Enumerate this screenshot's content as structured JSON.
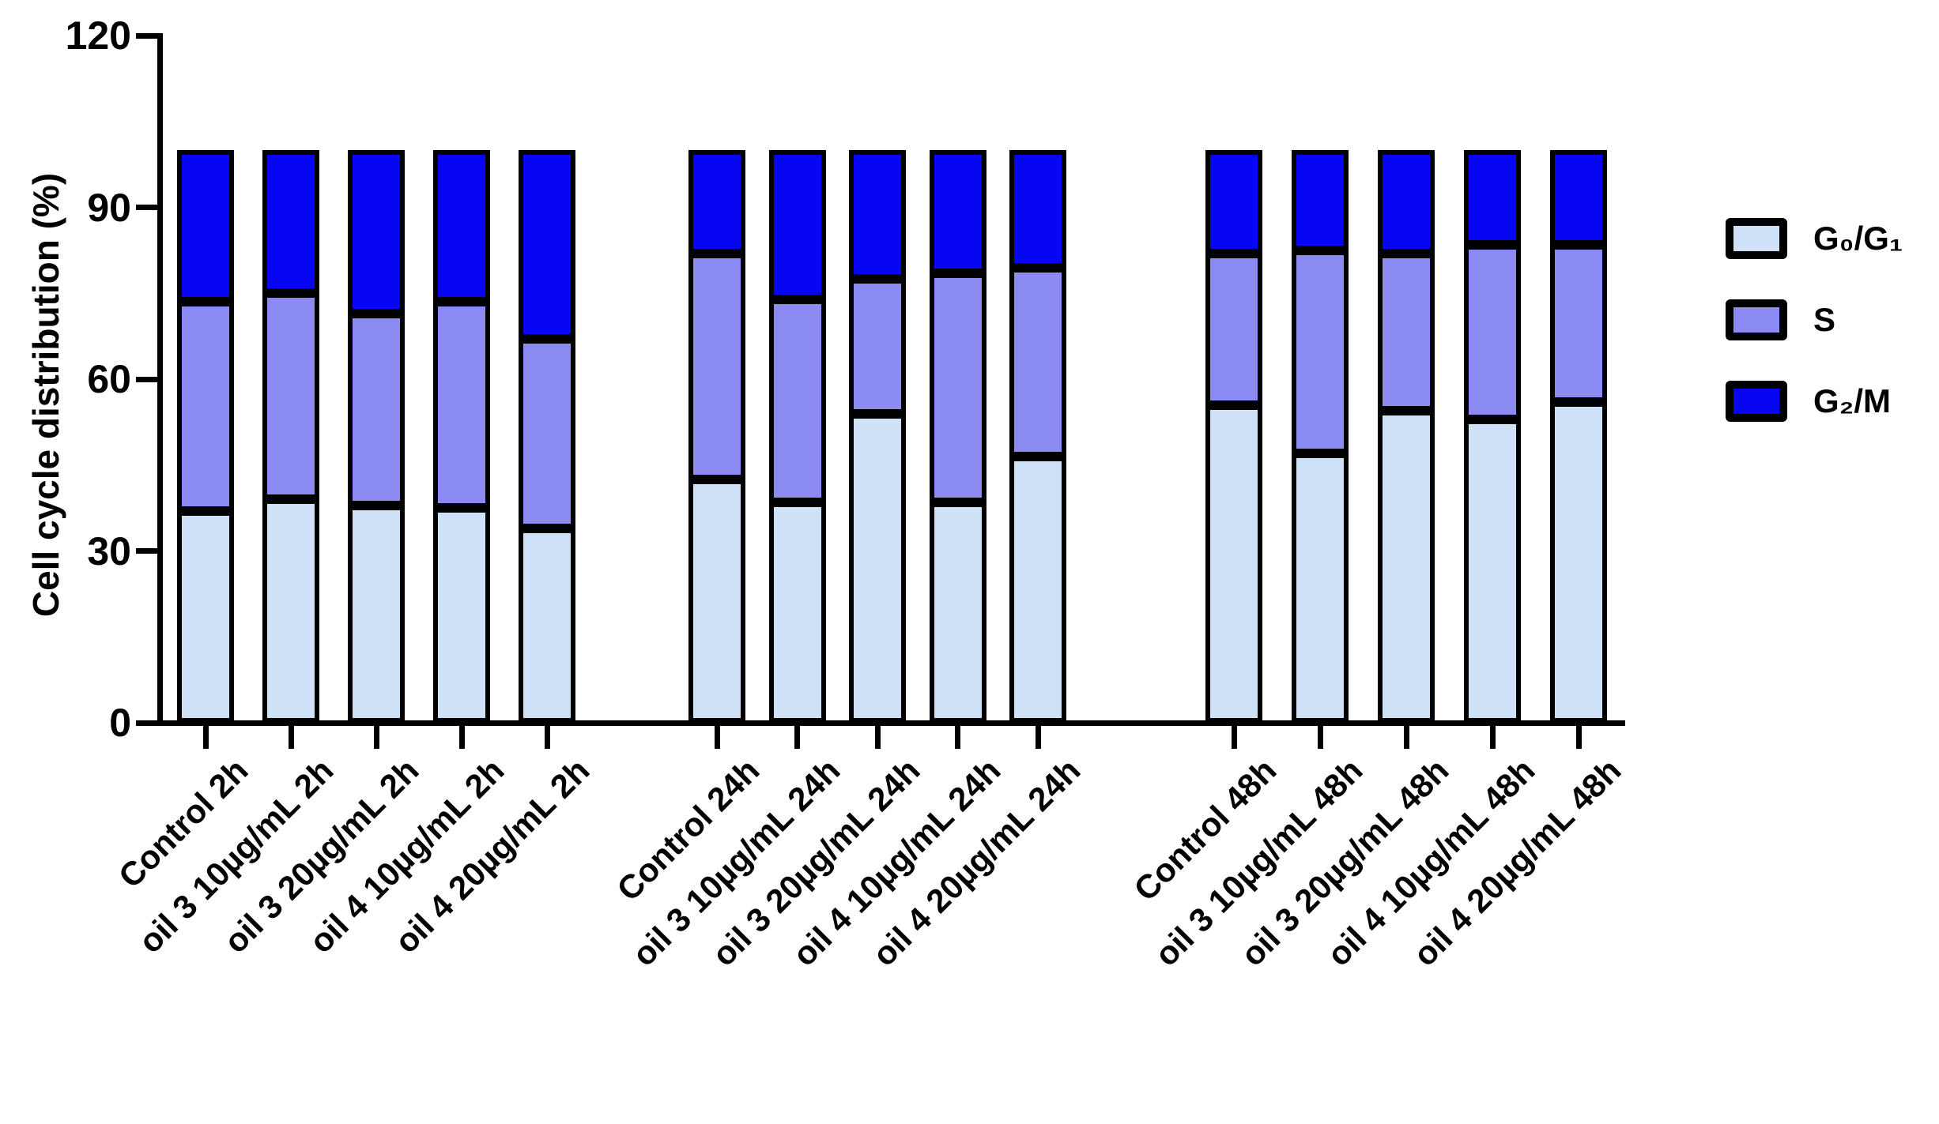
{
  "figure": {
    "y_axis_title": "Cell cycle distribution (%)"
  },
  "chart_data": {
    "type": "bar",
    "stacked": true,
    "title": "",
    "xlabel": "",
    "ylabel": "Cell cycle distribution (%)",
    "ylim": [
      0,
      120
    ],
    "yticks": [
      0,
      30,
      60,
      90,
      120
    ],
    "grid": false,
    "legend_position": "right",
    "bar_outline_color": "#000000",
    "categories": [
      "Control 2h",
      "oil 3 10µg/mL 2h",
      "oil 3 20µg/mL 2h",
      "oil 4 10µg/mL 2h",
      "oil 4 20µg/mL 2h",
      "Control 24h",
      "oil 3 10µg/mL 24h",
      "oil 3 20µg/mL 24h",
      "oil 4 10µg/mL 24h",
      "oil 4 20µg/mL 24h",
      "Control 48h",
      "oil 3 10µg/mL 48h",
      "oil 3 20µg/mL 48h",
      "oil 4 10µg/mL 48h",
      "oil 4 20µg/mL 48h"
    ],
    "series": [
      {
        "name": "G₀/G₁",
        "color": "#CFE1F6",
        "values": [
          37,
          39,
          38,
          37.5,
          34,
          42.5,
          38.5,
          54,
          38.5,
          46.5,
          55.5,
          47,
          54.5,
          53,
          56
        ]
      },
      {
        "name": "S",
        "color": "#8B8BF3",
        "values": [
          36.5,
          36,
          33.5,
          36,
          33,
          39.5,
          35.5,
          23.5,
          40,
          33,
          26.5,
          35.5,
          27.5,
          30.5,
          27.5
        ]
      },
      {
        "name": "G₂/M",
        "color": "#0606F2",
        "values": [
          26.5,
          25,
          28.5,
          26.5,
          33,
          18,
          26,
          22.5,
          21.5,
          20.5,
          18,
          17.5,
          18,
          16.5,
          16.5
        ]
      }
    ]
  }
}
